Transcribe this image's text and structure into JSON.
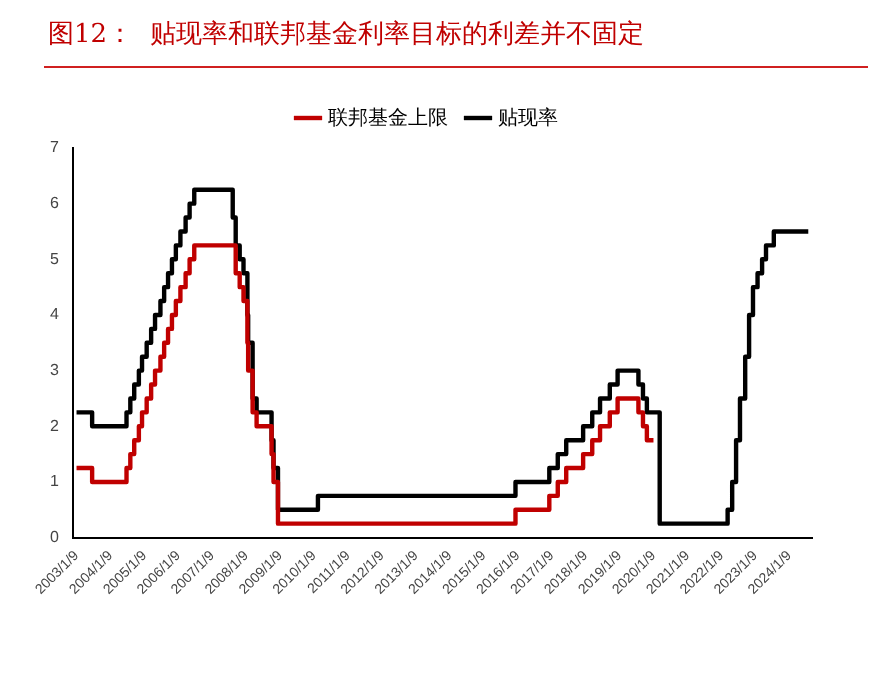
{
  "chart_data": {
    "type": "step",
    "title": "图12：  贴现率和联邦基金利率目标的利差并不固定",
    "legend": "top",
    "grid": false,
    "marker": "none",
    "line_style": "solid",
    "xlim": [
      "2002-12-01",
      "2024-09-10"
    ],
    "xticks": [
      {
        "value": "2003-01-09",
        "label": "2003/1/9"
      },
      {
        "value": "2004-01-09",
        "label": "2004/1/9"
      },
      {
        "value": "2005-01-09",
        "label": "2005/1/9"
      },
      {
        "value": "2006-01-09",
        "label": "2006/1/9"
      },
      {
        "value": "2007-01-09",
        "label": "2007/1/9"
      },
      {
        "value": "2008-01-09",
        "label": "2008/1/9"
      },
      {
        "value": "2009-01-09",
        "label": "2009/1/9"
      },
      {
        "value": "2010-01-09",
        "label": "2010/1/9"
      },
      {
        "value": "2011-01-09",
        "label": "2011/1/9"
      },
      {
        "value": "2012-01-09",
        "label": "2012/1/9"
      },
      {
        "value": "2013-01-09",
        "label": "2013/1/9"
      },
      {
        "value": "2014-01-09",
        "label": "2014/1/9"
      },
      {
        "value": "2015-01-09",
        "label": "2015/1/9"
      },
      {
        "value": "2016-01-09",
        "label": "2016/1/9"
      },
      {
        "value": "2017-01-09",
        "label": "2017/1/9"
      },
      {
        "value": "2018-01-09",
        "label": "2018/1/9"
      },
      {
        "value": "2019-01-09",
        "label": "2019/1/9"
      },
      {
        "value": "2020-01-09",
        "label": "2020/1/9"
      },
      {
        "value": "2021-01-09",
        "label": "2021/1/9"
      },
      {
        "value": "2022-01-09",
        "label": "2022/1/9"
      },
      {
        "value": "2023-01-09",
        "label": "2023/1/9"
      },
      {
        "value": "2024-01-09",
        "label": "2024/1/9"
      }
    ],
    "ylim": [
      0,
      7
    ],
    "yticks": [
      0,
      1,
      2,
      3,
      4,
      5,
      6,
      7
    ],
    "series": [
      {
        "name": "联邦基金上限",
        "color": "#c00000",
        "x": [
          "2003-01-09",
          "2003-06-26",
          "2004-06-30",
          "2004-08-10",
          "2004-09-21",
          "2004-11-10",
          "2004-12-14",
          "2005-02-02",
          "2005-03-22",
          "2005-05-03",
          "2005-06-30",
          "2005-08-09",
          "2005-09-20",
          "2005-11-01",
          "2005-12-13",
          "2006-01-31",
          "2006-03-28",
          "2006-05-10",
          "2006-06-29",
          "2007-09-18",
          "2007-10-31",
          "2007-12-11",
          "2008-01-22",
          "2008-01-30",
          "2008-03-18",
          "2008-04-30",
          "2008-10-08",
          "2008-10-29",
          "2008-12-16",
          "2015-12-16",
          "2016-12-14",
          "2017-03-15",
          "2017-06-14",
          "2017-12-13",
          "2018-03-21",
          "2018-06-13",
          "2018-09-26",
          "2018-12-19",
          "2019-07-31",
          "2019-09-18",
          "2019-10-30",
          "2020-01-09"
        ],
        "values": [
          1.25,
          1.0,
          1.25,
          1.5,
          1.75,
          2.0,
          2.25,
          2.5,
          2.75,
          3.0,
          3.25,
          3.5,
          3.75,
          4.0,
          4.25,
          4.5,
          4.75,
          5.0,
          5.25,
          4.75,
          4.5,
          4.25,
          3.5,
          3.0,
          2.25,
          2.0,
          1.5,
          1.0,
          0.25,
          0.5,
          0.75,
          1.0,
          1.25,
          1.5,
          1.75,
          2.0,
          2.25,
          2.5,
          2.25,
          2.0,
          1.75,
          1.75
        ]
      },
      {
        "name": "贴现率",
        "color": "#000000",
        "x": [
          "2003-01-09",
          "2003-06-26",
          "2004-06-30",
          "2004-08-10",
          "2004-09-21",
          "2004-11-10",
          "2004-12-14",
          "2005-02-02",
          "2005-03-22",
          "2005-05-03",
          "2005-06-30",
          "2005-08-09",
          "2005-09-20",
          "2005-11-01",
          "2005-12-13",
          "2006-01-31",
          "2006-03-28",
          "2006-05-10",
          "2006-06-29",
          "2007-08-17",
          "2007-09-18",
          "2007-10-31",
          "2007-12-11",
          "2008-01-22",
          "2008-01-30",
          "2008-03-18",
          "2008-04-30",
          "2008-10-08",
          "2008-10-29",
          "2008-12-16",
          "2010-02-19",
          "2015-12-16",
          "2016-12-14",
          "2017-03-15",
          "2017-06-14",
          "2017-12-13",
          "2018-03-21",
          "2018-06-13",
          "2018-09-26",
          "2018-12-19",
          "2019-07-31",
          "2019-09-18",
          "2019-10-30",
          "2020-03-16",
          "2022-03-17",
          "2022-05-05",
          "2022-06-16",
          "2022-07-28",
          "2022-09-22",
          "2022-11-03",
          "2022-12-15",
          "2023-02-02",
          "2023-03-23",
          "2023-05-04",
          "2023-07-27",
          "2024-08-01"
        ],
        "values": [
          2.25,
          2.0,
          2.25,
          2.5,
          2.75,
          3.0,
          3.25,
          3.5,
          3.75,
          4.0,
          4.25,
          4.5,
          4.75,
          5.0,
          5.25,
          5.5,
          5.75,
          6.0,
          6.25,
          5.75,
          5.25,
          5.0,
          4.75,
          4.0,
          3.5,
          2.5,
          2.25,
          1.75,
          1.25,
          0.5,
          0.75,
          1.0,
          1.25,
          1.5,
          1.75,
          2.0,
          2.25,
          2.5,
          2.75,
          3.0,
          2.75,
          2.5,
          2.25,
          0.25,
          0.5,
          1.0,
          1.75,
          2.5,
          3.25,
          4.0,
          4.5,
          4.75,
          5.0,
          5.25,
          5.5,
          5.5
        ]
      }
    ]
  }
}
